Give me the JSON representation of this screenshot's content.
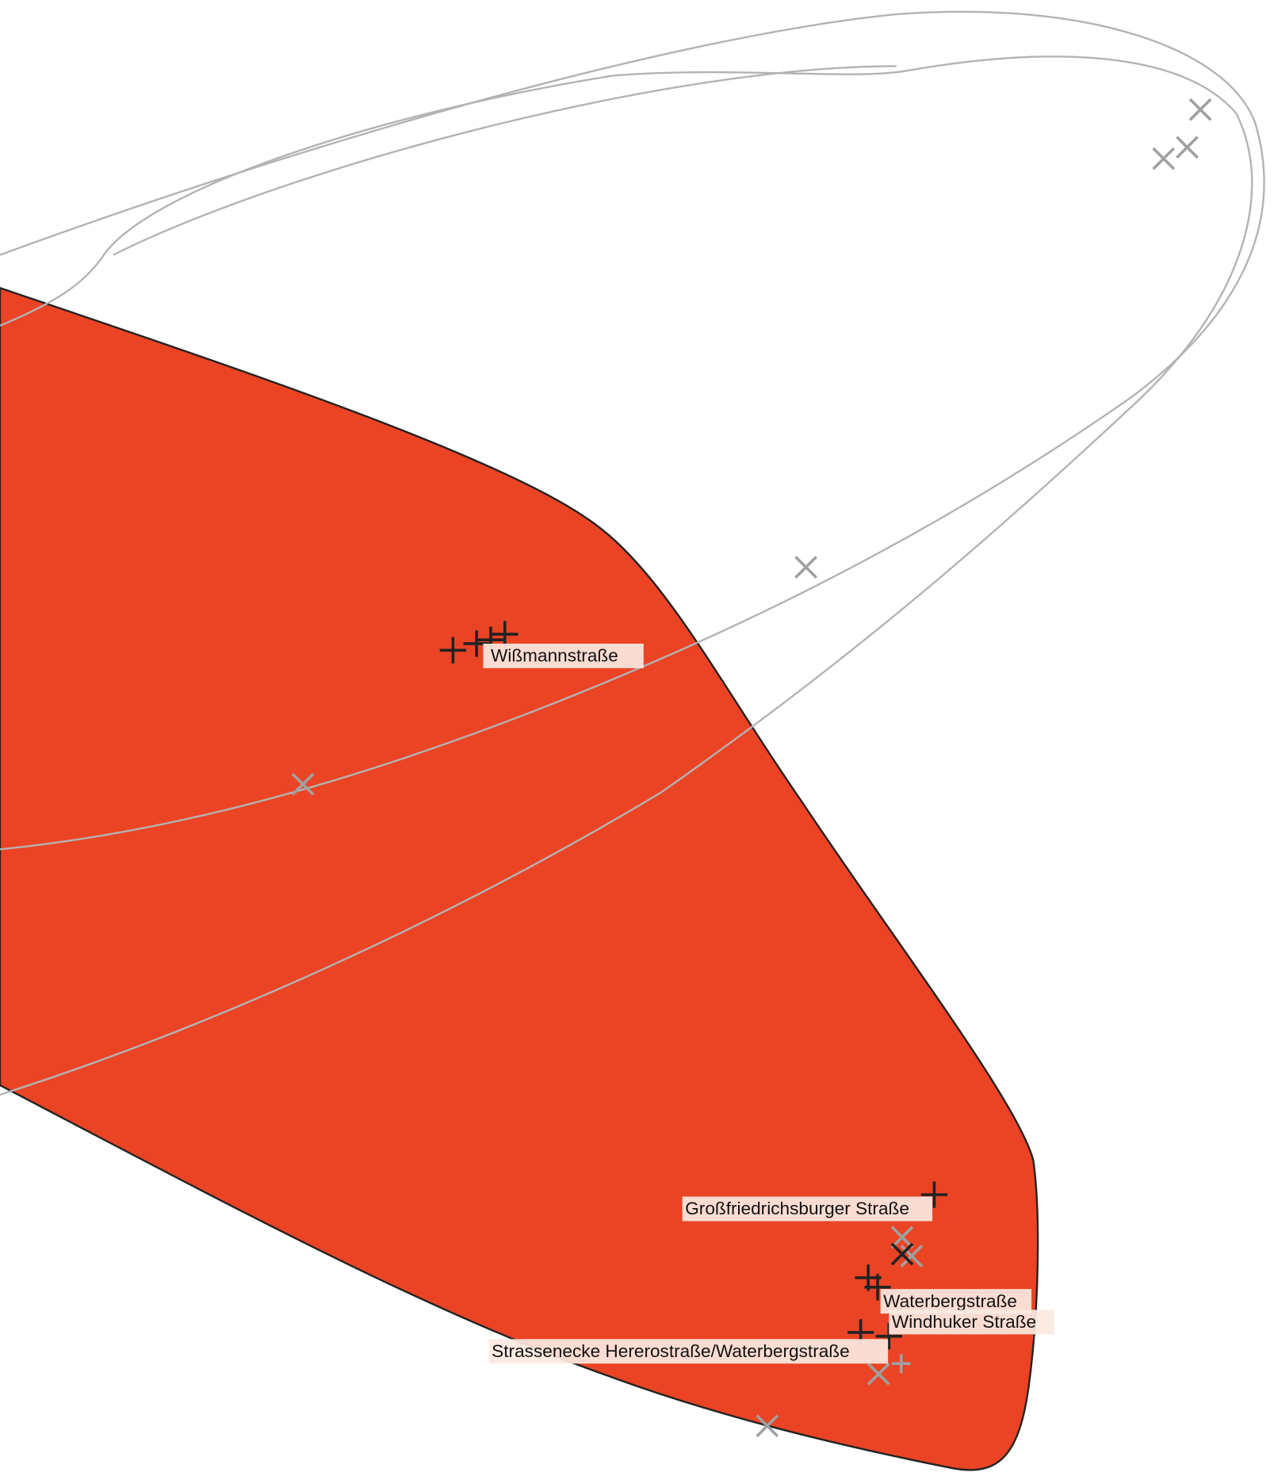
{
  "labels": {
    "wissmann": "Wißmannstraße",
    "grossfriedrichsburger": "Großfriedrichsburger Straße",
    "waterberg": "Waterbergstraße",
    "windhuker": "Windhuker Straße",
    "strassenecke": "Strassenecke Hererostraße/Waterbergstraße"
  }
}
